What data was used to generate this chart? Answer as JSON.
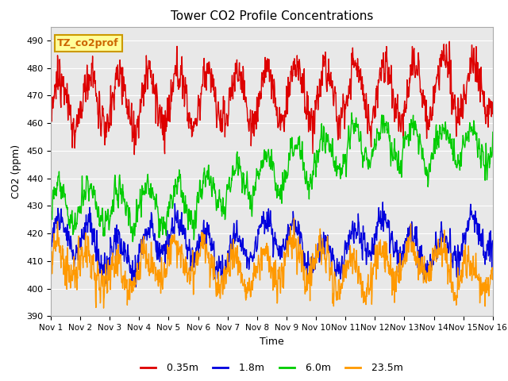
{
  "title": "Tower CO2 Profile Concentrations",
  "xlabel": "Time",
  "ylabel": "CO2 (ppm)",
  "ylim": [
    390,
    495
  ],
  "yticks": [
    390,
    400,
    410,
    420,
    430,
    440,
    450,
    460,
    470,
    480,
    490
  ],
  "xticklabels": [
    "Nov 1",
    "Nov 2",
    "Nov 3",
    "Nov 4",
    "Nov 5",
    "Nov 6",
    "Nov 7",
    "Nov 8",
    "Nov 9",
    "Nov 10",
    "Nov 11",
    "Nov 12",
    "Nov 13",
    "Nov 14",
    "Nov 15",
    "Nov 16"
  ],
  "series_colors": {
    "0.35m": "#dd0000",
    "1.8m": "#0000dd",
    "6.0m": "#00cc00",
    "23.5m": "#ff9900"
  },
  "series_lw": 1.0,
  "legend_label": "TZ_co2prof",
  "legend_label_color": "#cc6600",
  "legend_box_facecolor": "#ffff99",
  "legend_box_edgecolor": "#cc9900",
  "fig_facecolor": "#ffffff",
  "ax_facecolor": "#e8e8e8",
  "grid_color": "#ffffff",
  "n_days": 15,
  "pts_per_day": 96,
  "seed": 12345
}
